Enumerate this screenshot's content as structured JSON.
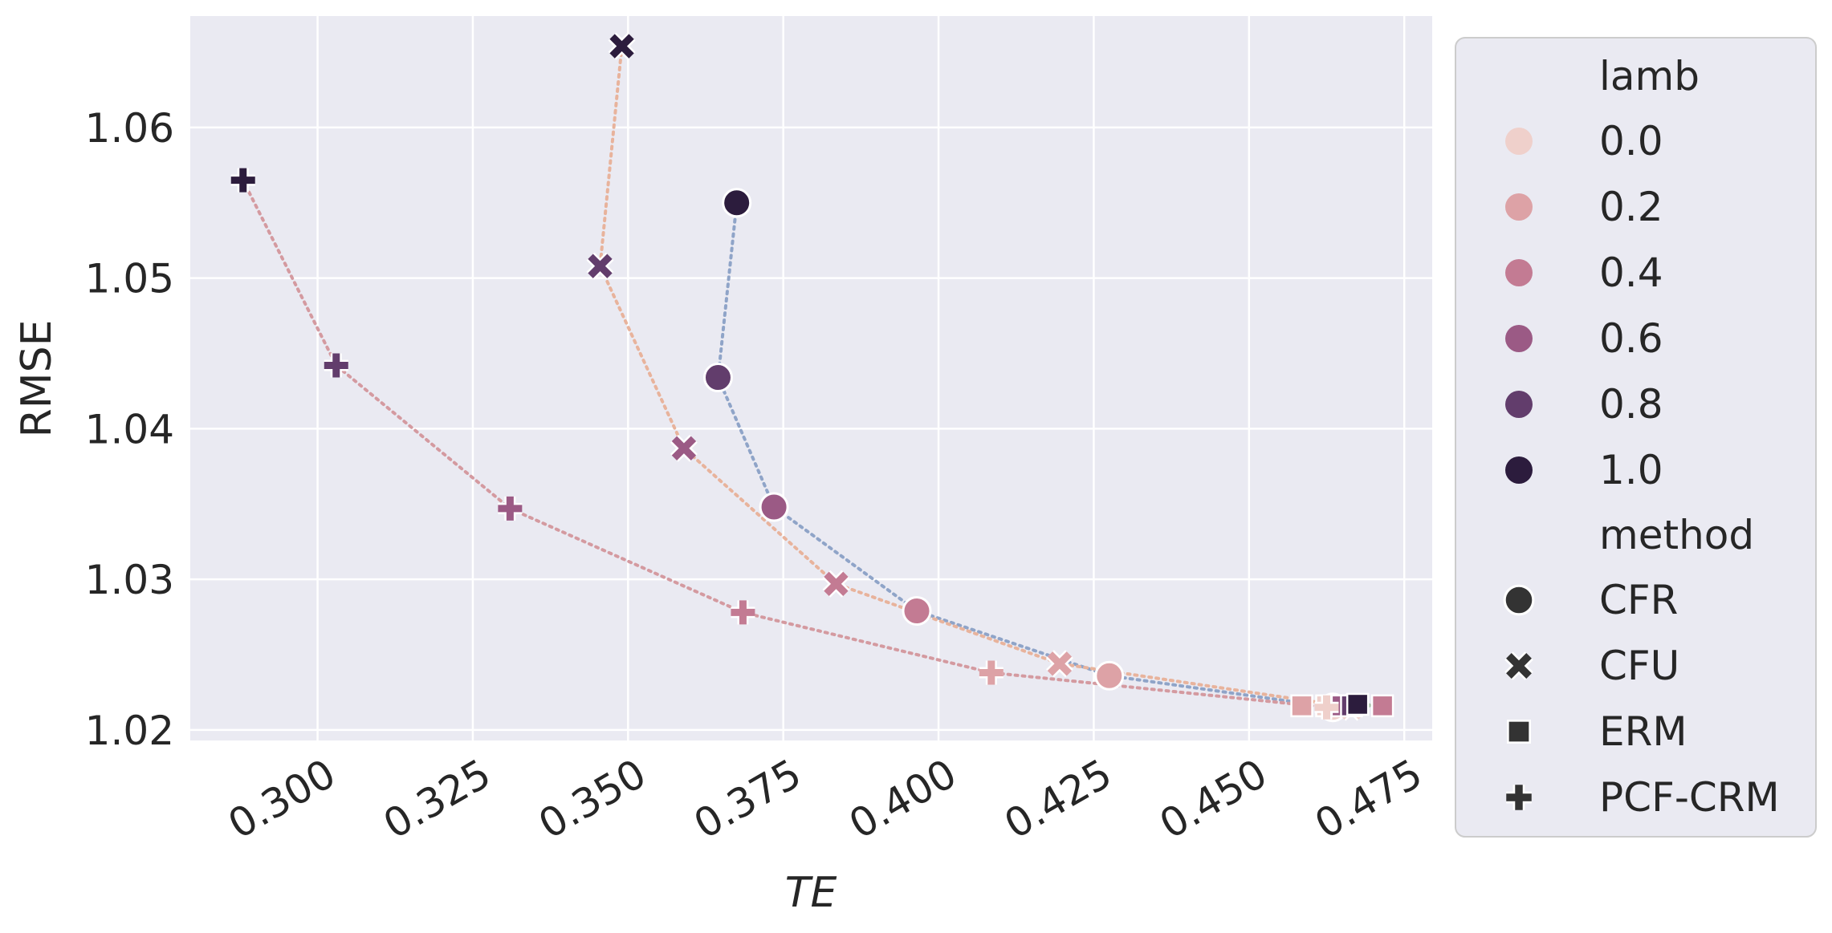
{
  "chart_data": {
    "type": "scatter",
    "xlabel": "TE",
    "ylabel": "RMSE",
    "xlim": [
      0.2795,
      0.4795
    ],
    "ylim": [
      1.0193,
      1.0674
    ],
    "xticks": [
      "0.300",
      "0.325",
      "0.350",
      "0.375",
      "0.400",
      "0.425",
      "0.450",
      "0.475"
    ],
    "yticks": [
      "1.02",
      "1.03",
      "1.04",
      "1.05",
      "1.06"
    ],
    "grid": true,
    "legend": {
      "placement": "outside-right",
      "hue_title": "lamb",
      "hue_levels": [
        {
          "label": "0.0",
          "color": "#efd0cb"
        },
        {
          "label": "0.2",
          "color": "#dda2a6"
        },
        {
          "label": "0.4",
          "color": "#c37b93"
        },
        {
          "label": "0.6",
          "color": "#9b5a85"
        },
        {
          "label": "0.8",
          "color": "#623d6c"
        },
        {
          "label": "1.0",
          "color": "#2c1c3d"
        }
      ],
      "style_title": "method",
      "style_levels": [
        {
          "label": "CFR",
          "marker": "circle"
        },
        {
          "label": "CFU",
          "marker": "x"
        },
        {
          "label": "ERM",
          "marker": "square"
        },
        {
          "label": "PCF-CRM",
          "marker": "plus"
        }
      ]
    },
    "series": [
      {
        "method": "CFR",
        "line_color": "#8fa4c8",
        "points": [
          {
            "x": 0.4635,
            "y": 1.0215,
            "lamb": "0.0"
          },
          {
            "x": 0.4275,
            "y": 1.0236,
            "lamb": "0.2"
          },
          {
            "x": 0.3965,
            "y": 1.0279,
            "lamb": "0.4"
          },
          {
            "x": 0.3735,
            "y": 1.0348,
            "lamb": "0.6"
          },
          {
            "x": 0.3645,
            "y": 1.0434,
            "lamb": "0.8"
          },
          {
            "x": 0.3675,
            "y": 1.055,
            "lamb": "1.0"
          }
        ]
      },
      {
        "method": "CFU",
        "line_color": "#e8b39c",
        "points": [
          {
            "x": 0.4665,
            "y": 1.0215,
            "lamb": "0.0"
          },
          {
            "x": 0.4195,
            "y": 1.0244,
            "lamb": "0.2"
          },
          {
            "x": 0.3835,
            "y": 1.0297,
            "lamb": "0.4"
          },
          {
            "x": 0.359,
            "y": 1.0387,
            "lamb": "0.6"
          },
          {
            "x": 0.3455,
            "y": 1.0508,
            "lamb": "0.8"
          },
          {
            "x": 0.349,
            "y": 1.0654,
            "lamb": "1.0"
          }
        ]
      },
      {
        "method": "ERM",
        "line_color": "#a3c0a0",
        "points": [
          {
            "x": 0.4585,
            "y": 1.0216,
            "lamb": "0.2"
          },
          {
            "x": 0.4625,
            "y": 1.0216,
            "lamb": "0.0"
          },
          {
            "x": 0.465,
            "y": 1.0216,
            "lamb": "0.6"
          },
          {
            "x": 0.4665,
            "y": 1.0216,
            "lamb": "0.8"
          },
          {
            "x": 0.4675,
            "y": 1.0217,
            "lamb": "1.0"
          },
          {
            "x": 0.4715,
            "y": 1.0216,
            "lamb": "0.4"
          }
        ]
      },
      {
        "method": "PCF-CRM",
        "line_color": "#d49aa0",
        "points": [
          {
            "x": 0.4625,
            "y": 1.0215,
            "lamb": "0.0"
          },
          {
            "x": 0.4085,
            "y": 1.0238,
            "lamb": "0.2"
          },
          {
            "x": 0.3685,
            "y": 1.0278,
            "lamb": "0.4"
          },
          {
            "x": 0.331,
            "y": 1.0347,
            "lamb": "0.6"
          },
          {
            "x": 0.303,
            "y": 1.0442,
            "lamb": "0.8"
          },
          {
            "x": 0.288,
            "y": 1.0565,
            "lamb": "1.0"
          }
        ]
      }
    ]
  }
}
